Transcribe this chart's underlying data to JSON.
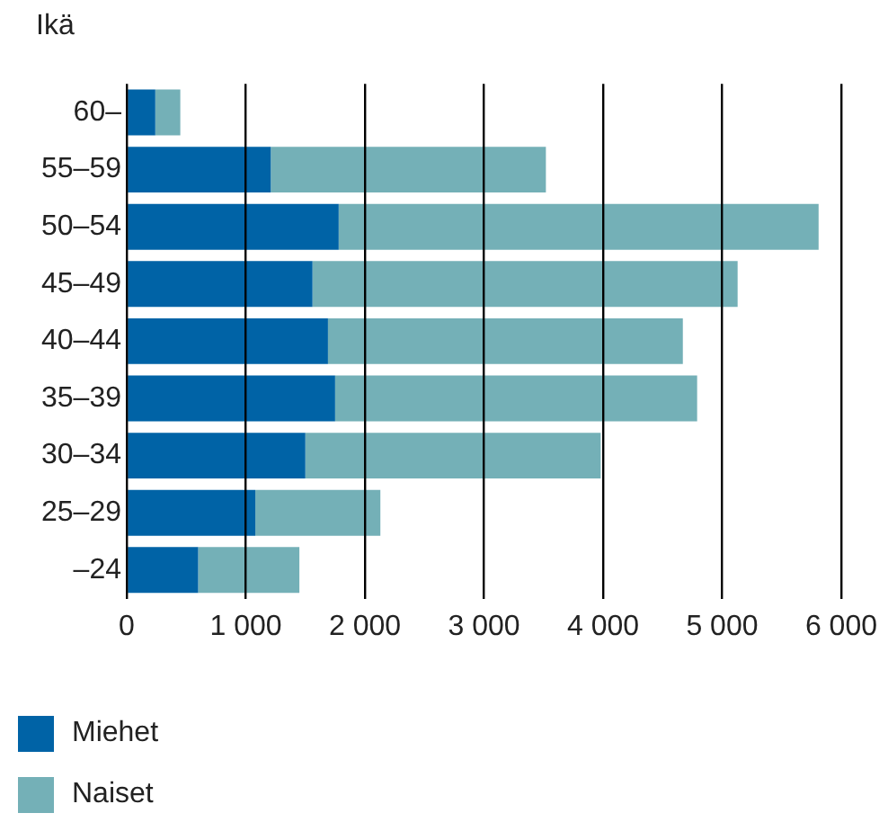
{
  "chart_data": {
    "type": "bar",
    "orientation": "horizontal",
    "stacked": true,
    "ylabel": "Ikä",
    "categories": [
      "60–",
      "55–59",
      "50–54",
      "45–49",
      "40–44",
      "35–39",
      "30–34",
      "25–29",
      "–24"
    ],
    "series": [
      {
        "name": "Miehet",
        "color": "#0063a6",
        "values": [
          240,
          1210,
          1780,
          1560,
          1690,
          1750,
          1500,
          1080,
          600
        ]
      },
      {
        "name": "Naiset",
        "color": "#74b0b7",
        "values": [
          210,
          2310,
          4030,
          3570,
          2980,
          3040,
          2480,
          1050,
          850
        ]
      }
    ],
    "xlim": [
      0,
      6000
    ],
    "xticks": [
      {
        "value": 0,
        "label": "0"
      },
      {
        "value": 1000,
        "label": "1 000"
      },
      {
        "value": 2000,
        "label": "2 000"
      },
      {
        "value": 3000,
        "label": "3 000"
      },
      {
        "value": 4000,
        "label": "4 000"
      },
      {
        "value": 5000,
        "label": "5 000"
      },
      {
        "value": 6000,
        "label": "6 000"
      }
    ],
    "grid": "x",
    "legend": "bottom left"
  }
}
